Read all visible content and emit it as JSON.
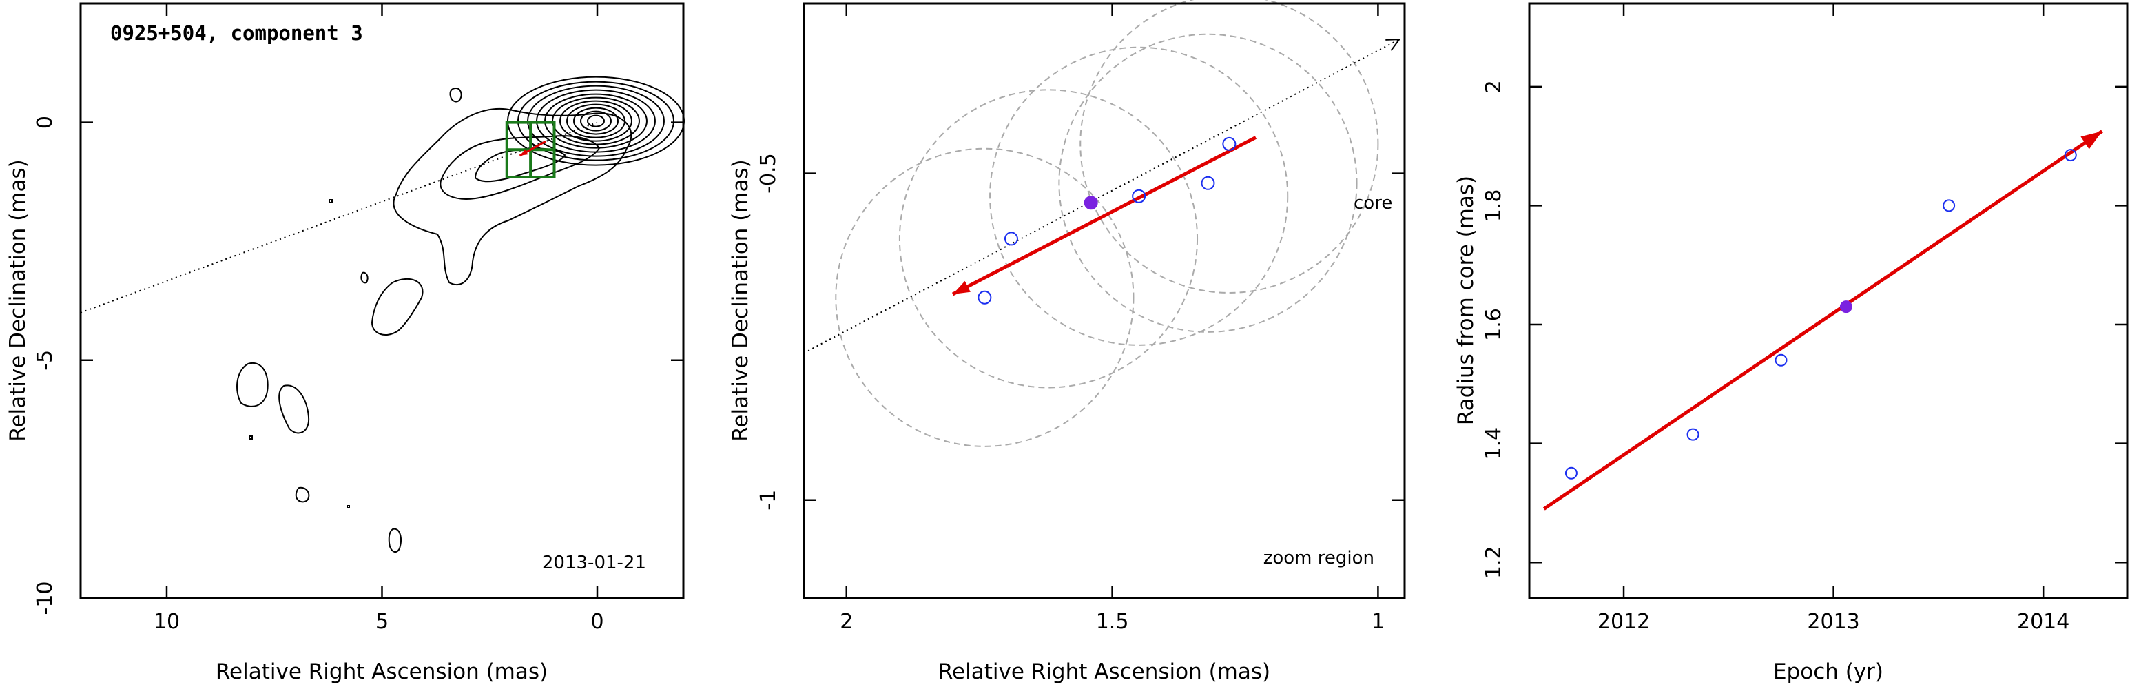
{
  "chart_data": [
    {
      "type": "contour",
      "title": "0925+504, component 3",
      "annotation": "2013-01-21",
      "xlabel": "Relative Right Ascension (mas)",
      "ylabel": "Relative Declination (mas)",
      "xlim": [
        12,
        -2
      ],
      "ylim": [
        -10,
        2.5
      ],
      "xticks": [
        10,
        5,
        0
      ],
      "yticks": [
        0,
        -5,
        -10
      ],
      "core": [
        0,
        0
      ],
      "component_trail": [
        [
          1.8,
          -0.7
        ],
        [
          1.2,
          -0.4
        ]
      ],
      "zoom_box": {
        "x": [
          1.0,
          2.1
        ],
        "y": [
          -1.15,
          0.0
        ]
      },
      "jet_axis_pa_line": [
        [
          12,
          -4.0
        ],
        [
          0,
          0
        ]
      ]
    },
    {
      "type": "scatter",
      "annotation": "zoom region",
      "direction_label": "core",
      "xlabel": "Relative Right Ascension (mas)",
      "ylabel": "Relative Declination (mas)",
      "xlim": [
        2.08,
        0.95
      ],
      "ylim": [
        -1.15,
        -0.24
      ],
      "xticks": [
        2,
        1.5,
        1
      ],
      "yticks": [
        -0.5,
        -1
      ],
      "points": [
        {
          "x": 1.74,
          "y": -0.69,
          "filled": false
        },
        {
          "x": 1.69,
          "y": -0.6,
          "filled": false
        },
        {
          "x": 1.54,
          "y": -0.545,
          "filled": true
        },
        {
          "x": 1.45,
          "y": -0.535,
          "filled": false
        },
        {
          "x": 1.32,
          "y": -0.515,
          "filled": false
        },
        {
          "x": 1.28,
          "y": -0.455,
          "filled": false
        }
      ],
      "circles": [
        {
          "x": 1.74,
          "y": -0.69,
          "r": 0.28
        },
        {
          "x": 1.62,
          "y": -0.6,
          "r": 0.28
        },
        {
          "x": 1.45,
          "y": -0.535,
          "r": 0.28
        },
        {
          "x": 1.32,
          "y": -0.515,
          "r": 0.28
        },
        {
          "x": 1.28,
          "y": -0.455,
          "r": 0.28
        }
      ],
      "fit_arrow": [
        [
          1.23,
          -0.445
        ],
        [
          1.8,
          -0.685
        ]
      ],
      "axis_line": [
        [
          2.08,
          -0.775
        ],
        [
          0.96,
          -0.295
        ]
      ]
    },
    {
      "type": "scatter",
      "xlabel": "Epoch (yr)",
      "ylabel": "Radius from core (mas)",
      "xlim": [
        2011.55,
        2014.4
      ],
      "ylim": [
        1.14,
        2.14
      ],
      "xticks": [
        2012,
        2013,
        2014
      ],
      "yticks": [
        1.2,
        1.4,
        1.6,
        1.8,
        2
      ],
      "points": [
        {
          "x": 2011.75,
          "y": 1.35,
          "filled": false
        },
        {
          "x": 2012.33,
          "y": 1.415,
          "filled": false
        },
        {
          "x": 2012.75,
          "y": 1.54,
          "filled": false
        },
        {
          "x": 2013.06,
          "y": 1.63,
          "filled": true
        },
        {
          "x": 2013.55,
          "y": 1.8,
          "filled": false
        },
        {
          "x": 2014.13,
          "y": 1.885,
          "filled": false
        }
      ],
      "fit_line": [
        [
          2011.62,
          1.29
        ],
        [
          2014.28,
          1.925
        ]
      ]
    }
  ]
}
